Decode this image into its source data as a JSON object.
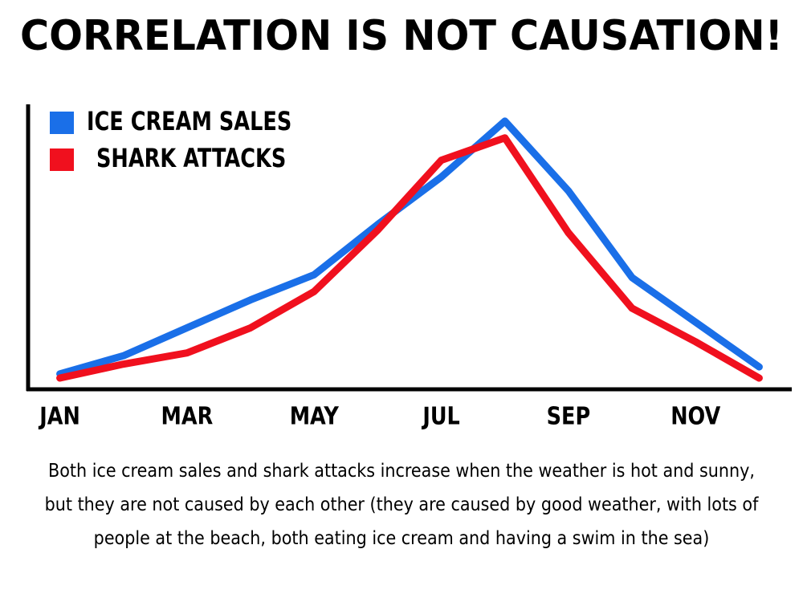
{
  "chart_data": {
    "type": "line",
    "title": "CORRELATION IS NOT CAUSATION!",
    "categories": [
      "JAN",
      null,
      "MAR",
      null,
      "MAY",
      null,
      "JUL",
      null,
      "SEP",
      null,
      "NOV",
      null
    ],
    "series": [
      {
        "name": "ICE CREAM SALES",
        "color": "#1a6fe8",
        "values": [
          3.5,
          10,
          20,
          30,
          39,
          57,
          74,
          94,
          69,
          38,
          22,
          6
        ]
      },
      {
        "name": "SHARK ATTACKS",
        "color": "#f0101e",
        "values": [
          2,
          7,
          11,
          20,
          33,
          55,
          80,
          88,
          54,
          27,
          15,
          2
        ]
      }
    ],
    "ylim": [
      0,
      100
    ],
    "legend": "upper left",
    "caption": "Both ice cream sales and shark attacks increase when the weather is hot and sunny, but they are not caused by each other (they are caused by good weather, with lots of people at the beach, both eating ice cream and having a swim in the sea)"
  }
}
